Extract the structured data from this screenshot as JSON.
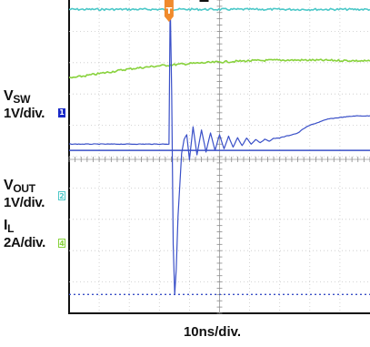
{
  "chart_data": {
    "type": "line",
    "title": "",
    "time_scale": "10ns/div.",
    "grid": true,
    "divisions": {
      "x": 10,
      "y": 10
    },
    "xlim": [
      0,
      10
    ],
    "ylim": [
      0,
      10
    ],
    "series": [
      {
        "channel": "4",
        "color": "#4cc8c8",
        "x": [
          0,
          10
        ],
        "y": [
          9.7,
          9.7
        ]
      },
      {
        "channel": "2",
        "color": "#88d23c",
        "x": [
          0,
          1,
          2,
          3,
          4,
          5,
          6,
          7,
          8,
          9,
          10
        ],
        "y": [
          7.5,
          7.65,
          7.8,
          7.9,
          7.97,
          8.02,
          8.06,
          8.08,
          8.08,
          8.07,
          8.05
        ]
      },
      {
        "channel": "1",
        "color": "#3a50c8",
        "x": [
          0,
          3.32,
          3.36,
          3.41,
          3.46,
          3.51,
          3.56,
          3.62,
          3.68,
          3.74,
          3.82,
          3.91,
          4.0,
          4.12,
          4.25,
          4.4,
          4.55,
          4.7,
          4.85,
          5.0,
          5.15,
          5.3,
          5.45,
          5.6,
          5.75,
          5.9,
          6.05,
          6.2,
          6.35,
          6.5,
          6.65,
          6.8,
          7.0,
          7.2,
          7.4,
          7.6,
          7.8,
          8.0,
          8.3,
          8.6,
          9.0,
          9.5,
          10
        ],
        "y": [
          5.4,
          5.4,
          10.0,
          7.0,
          2.2,
          0.6,
          1.4,
          3.1,
          4.1,
          5.1,
          5.55,
          5.7,
          4.9,
          5.95,
          5.05,
          5.85,
          5.15,
          5.75,
          5.2,
          5.7,
          5.25,
          5.65,
          5.3,
          5.6,
          5.35,
          5.6,
          5.4,
          5.55,
          5.45,
          5.55,
          5.5,
          5.58,
          5.6,
          5.65,
          5.7,
          5.75,
          5.9,
          6.0,
          6.1,
          6.2,
          6.25,
          6.3,
          6.3
        ]
      }
    ],
    "reference_lines": [
      {
        "channel": "1",
        "color": "#3a50c8",
        "style": "solid",
        "y": 5.2
      },
      {
        "channel": "4",
        "color": "#3a50c8",
        "style": "dotted",
        "y": 0.6
      }
    ],
    "trigger_marker": {
      "label": "T",
      "x": 3.32,
      "color": "#f08a2c"
    }
  },
  "channel_labels": [
    {
      "channel": "1",
      "name": "V",
      "sub": "SW",
      "scale": "1V/div.",
      "marker_color": "#1a2ac8"
    },
    {
      "channel": "2",
      "name": "V",
      "sub": "OUT",
      "scale": "1V/div.",
      "marker_color": "#4cc8c8"
    },
    {
      "channel": "4",
      "name": "I",
      "sub": "L",
      "scale": "2A/div.",
      "marker_color": "#88d23c"
    }
  ]
}
